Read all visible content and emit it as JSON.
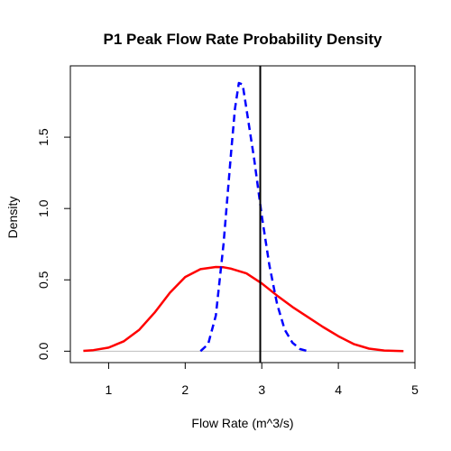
{
  "chart_data": {
    "type": "line",
    "title": "P1 Peak Flow Rate Probability Density",
    "xlabel": "Flow Rate (m^3/s)",
    "ylabel": "Density",
    "xlim": [
      0.5,
      5.0
    ],
    "ylim": [
      -0.08,
      2.0
    ],
    "x_ticks": [
      1,
      2,
      3,
      4,
      5
    ],
    "y_ticks": [
      0.0,
      0.5,
      1.0,
      1.5
    ],
    "x_tick_labels": [
      "1",
      "2",
      "3",
      "4",
      "5"
    ],
    "y_tick_labels": [
      "0.0",
      "0.5",
      "1.0",
      "1.5"
    ],
    "grid": false,
    "legend": "none",
    "series": [
      {
        "color": "#ff0000",
        "style": "solid",
        "x": [
          0.67,
          0.8,
          1.0,
          1.2,
          1.4,
          1.6,
          1.8,
          2.0,
          2.2,
          2.4,
          2.5,
          2.6,
          2.8,
          3.0,
          3.2,
          3.4,
          3.6,
          3.8,
          4.0,
          4.2,
          4.4,
          4.6,
          4.85
        ],
        "y": [
          0.002,
          0.007,
          0.025,
          0.07,
          0.15,
          0.27,
          0.41,
          0.52,
          0.575,
          0.59,
          0.588,
          0.578,
          0.545,
          0.475,
          0.39,
          0.31,
          0.24,
          0.17,
          0.105,
          0.05,
          0.018,
          0.005,
          0.0
        ]
      },
      {
        "color": "#0000ff",
        "style": "dashed",
        "x": [
          2.2,
          2.3,
          2.4,
          2.5,
          2.6,
          2.65,
          2.7,
          2.75,
          2.8,
          2.9,
          3.0,
          3.1,
          3.2,
          3.3,
          3.4,
          3.5,
          3.6
        ],
        "y": [
          0.0,
          0.05,
          0.25,
          0.75,
          1.4,
          1.7,
          1.88,
          1.87,
          1.7,
          1.35,
          0.95,
          0.6,
          0.33,
          0.15,
          0.06,
          0.015,
          0.0
        ]
      }
    ],
    "reference_lines": [
      {
        "orientation": "vertical",
        "x": 2.98,
        "color": "#000000"
      },
      {
        "orientation": "horizontal",
        "y": 0.0,
        "color": "#bebebe"
      }
    ]
  }
}
